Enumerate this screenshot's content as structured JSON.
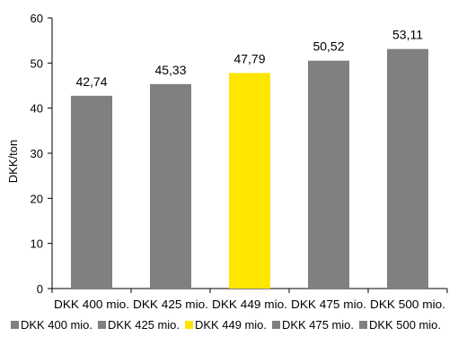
{
  "chart_data": {
    "type": "bar",
    "title": "",
    "xlabel": "",
    "ylabel": "DKK/ton",
    "ylim": [
      0,
      60
    ],
    "yticks": [
      0,
      10,
      20,
      30,
      40,
      50,
      60
    ],
    "grid": false,
    "legend_position": "bottom",
    "categories": [
      "DKK 400 mio.",
      "DKK 425 mio.",
      "DKK 449 mio.",
      "DKK 475 mio.",
      "DKK 500 mio."
    ],
    "values": [
      42.74,
      45.33,
      47.79,
      50.52,
      53.11
    ],
    "value_labels": [
      "42,74",
      "45,33",
      "47,79",
      "50,52",
      "53,11"
    ],
    "colors": [
      "#808080",
      "#808080",
      "#FFE600",
      "#808080",
      "#808080"
    ],
    "legend": [
      "DKK 400 mio.",
      "DKK 425 mio.",
      "DKK 449 mio.",
      "DKK 475 mio.",
      "DKK 500 mio."
    ]
  }
}
